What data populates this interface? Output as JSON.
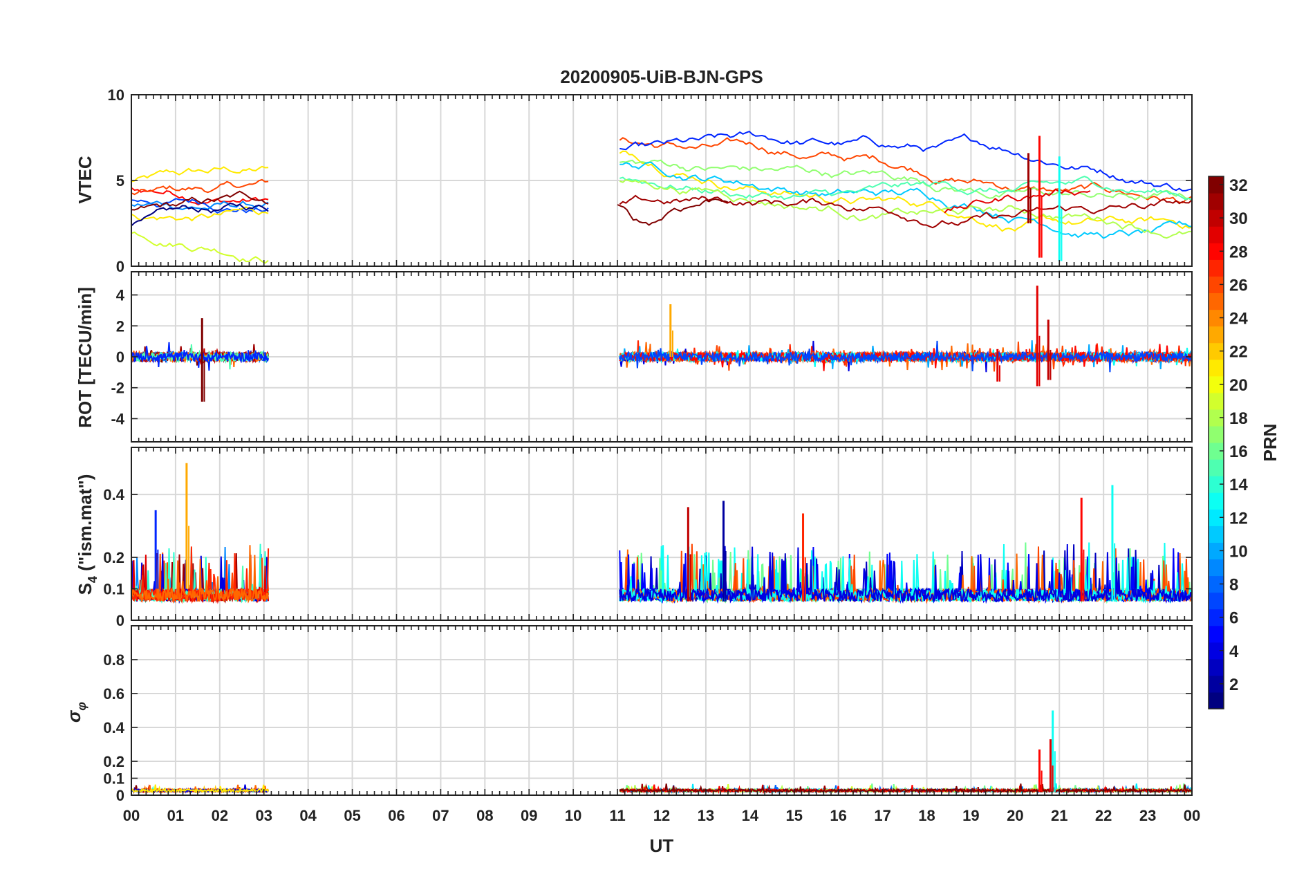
{
  "chart_data": {
    "type": "line",
    "title": "20200905-UiB-BJN-GPS",
    "xlabel": "UT",
    "x_tick_labels": [
      "00",
      "01",
      "02",
      "03",
      "04",
      "05",
      "06",
      "07",
      "08",
      "09",
      "10",
      "11",
      "12",
      "13",
      "14",
      "15",
      "16",
      "17",
      "18",
      "19",
      "20",
      "21",
      "22",
      "23",
      "00"
    ],
    "xlim": [
      0,
      24
    ],
    "grid": true,
    "panels": [
      {
        "key": "vtec",
        "ylabel": "VTEC",
        "ylim": [
          0,
          10
        ],
        "yticks": [
          0,
          5,
          10
        ],
        "ytick_labels": [
          "0",
          "5",
          "10"
        ],
        "segments": [
          {
            "start": 0.0,
            "end": 3.1,
            "levels": [
              5.0,
              4.5,
              4.2,
              3.8,
              3.5,
              3.2,
              2.9,
              2.5,
              1.9
            ]
          },
          {
            "start": 11.05,
            "end": 24.0,
            "levels": [
              7.4,
              6.8,
              6.5,
              6.0,
              5.8,
              5.2,
              4.8,
              3.6
            ]
          },
          {
            "start": 11.0,
            "end": 13.5,
            "levels": [
              3.5
            ],
            "fixed_prn": 32,
            "profile": "dip"
          },
          {
            "start": 18.4,
            "end": 21.7,
            "levels": [
              3.0
            ],
            "fixed_prn": 29,
            "profile": "rise"
          }
        ],
        "spikes": [
          {
            "x": 20.55,
            "y0": 0.5,
            "y1": 7.6,
            "prn": 28
          },
          {
            "x": 21.0,
            "y0": 0.3,
            "y1": 6.4,
            "prn": 13
          },
          {
            "x": 20.3,
            "y0": 2.5,
            "y1": 6.6,
            "prn": 31
          }
        ]
      },
      {
        "key": "rot",
        "ylabel": "ROT [TECU/min]",
        "ylim": [
          -5.5,
          5.5
        ],
        "yticks": [
          -4,
          -2,
          0,
          2,
          4
        ],
        "ytick_labels": [
          "-4",
          "-2",
          "0",
          "2",
          "4"
        ],
        "segments": [
          {
            "start": 0.0,
            "end": 3.1,
            "levels": [
              0.0
            ]
          },
          {
            "start": 11.05,
            "end": 24.0,
            "levels": [
              0.0
            ]
          }
        ],
        "spikes": [
          {
            "x": 1.6,
            "y0": -2.9,
            "y1": 2.5,
            "prn": 32
          },
          {
            "x": 12.2,
            "y0": 0.0,
            "y1": 3.4,
            "prn": 23
          },
          {
            "x": 20.5,
            "y0": -1.9,
            "y1": 4.6,
            "prn": 29
          },
          {
            "x": 20.75,
            "y0": -1.5,
            "y1": 2.4,
            "prn": 30
          },
          {
            "x": 19.6,
            "y0": -1.6,
            "y1": 0.5,
            "prn": 29
          }
        ]
      },
      {
        "key": "s4",
        "ylabel": "S4 (\"ism.mat\")",
        "ylim": [
          0,
          0.55
        ],
        "yticks": [
          0,
          0.1,
          0.2,
          0.4
        ],
        "ytick_labels": [
          "0",
          "0.1",
          "0.2",
          "0.4"
        ],
        "segments": [
          {
            "start": 0.0,
            "end": 3.1,
            "levels": [
              0.06
            ]
          },
          {
            "start": 11.05,
            "end": 24.0,
            "levels": [
              0.06
            ]
          }
        ],
        "spikes": [
          {
            "x": 1.25,
            "y0": 0.1,
            "y1": 0.5,
            "prn": 23
          },
          {
            "x": 0.55,
            "y0": 0.1,
            "y1": 0.35,
            "prn": 6
          },
          {
            "x": 13.4,
            "y0": 0.06,
            "y1": 0.38,
            "prn": 2
          },
          {
            "x": 21.5,
            "y0": 0.06,
            "y1": 0.39,
            "prn": 28
          },
          {
            "x": 22.2,
            "y0": 0.06,
            "y1": 0.43,
            "prn": 13
          },
          {
            "x": 12.6,
            "y0": 0.06,
            "y1": 0.36,
            "prn": 30
          },
          {
            "x": 15.2,
            "y0": 0.06,
            "y1": 0.34,
            "prn": 27
          }
        ]
      },
      {
        "key": "sigma_phi",
        "ylabel": "σφ",
        "ylim": [
          0,
          1
        ],
        "yticks": [
          0,
          0.1,
          0.2,
          0.4,
          0.6,
          0.8
        ],
        "ytick_labels": [
          "0",
          "0.1",
          "0.2",
          "0.4",
          "0.6",
          "0.8"
        ],
        "segments": [
          {
            "start": 0.0,
            "end": 3.1,
            "levels": [
              0.02
            ]
          },
          {
            "start": 11.05,
            "end": 24.0,
            "levels": [
              0.02
            ]
          }
        ],
        "spikes": [
          {
            "x": 20.55,
            "y0": 0.02,
            "y1": 0.27,
            "prn": 28
          },
          {
            "x": 20.85,
            "y0": 0.02,
            "y1": 0.5,
            "prn": 13
          },
          {
            "x": 20.8,
            "y0": 0.02,
            "y1": 0.33,
            "prn": 29
          }
        ]
      }
    ],
    "colorbar": {
      "label": "PRN",
      "range": [
        1,
        32
      ],
      "ticks": [
        2,
        4,
        6,
        8,
        10,
        12,
        14,
        16,
        18,
        20,
        22,
        24,
        26,
        28,
        30,
        32
      ],
      "tick_labels": [
        "2",
        "4",
        "6",
        "8",
        "10",
        "12",
        "14",
        "16",
        "18",
        "20",
        "22",
        "24",
        "26",
        "28",
        "30",
        "32"
      ],
      "colormap": "jet"
    }
  }
}
